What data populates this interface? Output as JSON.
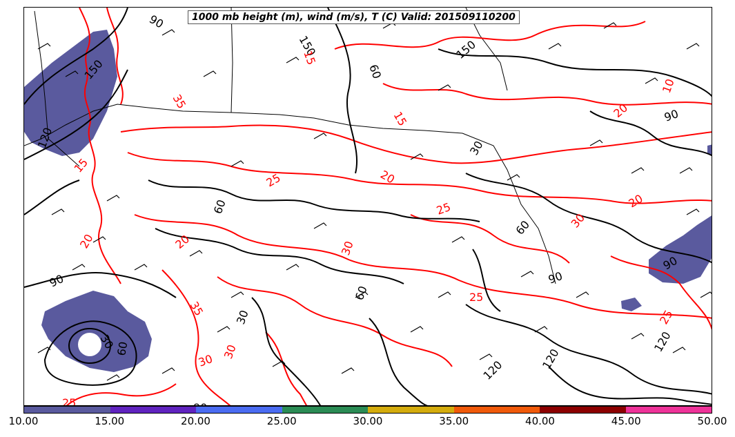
{
  "title": "1000 mb height (m), wind (m/s), T (C) Valid: 201509110200",
  "colors": {
    "height_contour": "#000000",
    "temp_contour": "#ff0000",
    "border": "#000000",
    "wind_barb": "#000000"
  },
  "colorbar": {
    "segments": [
      {
        "from": 10,
        "to": 15,
        "color": "#5a5a9e"
      },
      {
        "from": 15,
        "to": 20,
        "color": "#6023bf"
      },
      {
        "from": 20,
        "to": 25,
        "color": "#4b6cf2"
      },
      {
        "from": 25,
        "to": 30,
        "color": "#2b8c55"
      },
      {
        "from": 30,
        "to": 35,
        "color": "#d4ac0d"
      },
      {
        "from": 35,
        "to": 40,
        "color": "#f05a0a"
      },
      {
        "from": 40,
        "to": 45,
        "color": "#8c0000"
      },
      {
        "from": 45,
        "to": 50,
        "color": "#ee3399"
      }
    ],
    "tick_labels": [
      "10.00",
      "15.00",
      "20.00",
      "25.00",
      "30.00",
      "35.00",
      "40.00",
      "45.00",
      "50.00"
    ]
  },
  "height_contour_labels": [
    "150",
    "120",
    "90",
    "60",
    "30",
    "150",
    "120",
    "90",
    "60",
    "30",
    "90",
    "120",
    "150",
    "120",
    "60",
    "90",
    "60",
    "90",
    "60",
    "30",
    "90"
  ],
  "temp_contour_labels": [
    "15",
    "20",
    "25",
    "30",
    "15",
    "20",
    "25",
    "30",
    "35",
    "15",
    "20",
    "30",
    "35",
    "25",
    "25",
    "30",
    "20",
    "25",
    "20",
    "10"
  ],
  "regions": [
    "wind-speed-region-pacific-northwest",
    "wind-speed-region-pacific-offshore",
    "wind-speed-region-atlantic",
    "wind-speed-region-atlantic-small"
  ]
}
